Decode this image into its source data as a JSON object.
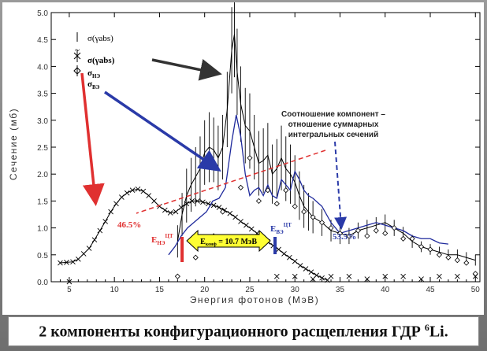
{
  "caption": {
    "main": "2 компоненты конфигурационного расщепления ГДР ",
    "superscript": "6",
    "element": "Li."
  },
  "chart_data": {
    "type": "line",
    "xlabel": "Энергия фотонов (МэВ)",
    "ylabel": "Сечение (мб)",
    "xlim": [
      3,
      50.5
    ],
    "ylim": [
      0,
      5.0
    ],
    "xticks": [
      5,
      10,
      15,
      20,
      25,
      30,
      35,
      40,
      45,
      50
    ],
    "yticks": [
      0.0,
      0.5,
      1.0,
      1.5,
      2.0,
      2.5,
      3.0,
      3.5,
      4.0,
      4.5,
      5.0
    ],
    "ytick_labels": [
      "0.0",
      "0.5",
      "1.0",
      "1.5",
      "2.0",
      "2.5",
      "3.0",
      "3.5",
      "4.0",
      "4.5",
      "5.0"
    ],
    "grid": false,
    "legend": {
      "placement": "top-left",
      "entries": [
        {
          "marker": "errorbar",
          "text": "σ(γabs)"
        },
        {
          "marker": "tilde",
          "text": "~"
        },
        {
          "marker": "x-bar",
          "text": "σ(γabs)"
        },
        {
          "marker": "diamond",
          "text": "σ",
          "sub": "НЭ"
        },
        {
          "marker": "none",
          "text": "σ",
          "sub": "ВЭ"
        }
      ]
    },
    "series": [
      {
        "name": "σ(γabs)",
        "style": "errorbar-line",
        "color": "#000000",
        "x": [
          17.0,
          17.5,
          18.0,
          18.5,
          19.0,
          19.5,
          20.0,
          20.5,
          21.0,
          21.5,
          22.0,
          22.5,
          23.0,
          23.3,
          23.6,
          24.0,
          24.5,
          25.0,
          25.5,
          26.0,
          26.5,
          27.0,
          27.5,
          28.0,
          28.5,
          29.0,
          29.5,
          30.0,
          30.5,
          31.0,
          31.5,
          32.0,
          33.0,
          34.0,
          35.0,
          36.0,
          37.0,
          38.0,
          39.0,
          40.0,
          41.0,
          42.0,
          43.0,
          44.0,
          45.0,
          46.0,
          47.0,
          48.0,
          49.0,
          50.0
        ],
        "y": [
          0.75,
          1.25,
          1.6,
          1.8,
          1.95,
          2.1,
          2.4,
          2.5,
          2.45,
          2.3,
          2.5,
          3.2,
          4.3,
          4.6,
          3.9,
          3.3,
          2.9,
          2.8,
          2.5,
          2.2,
          2.25,
          2.35,
          2.0,
          2.1,
          2.3,
          2.1,
          2.0,
          1.85,
          1.6,
          1.4,
          1.3,
          1.2,
          1.1,
          0.95,
          0.9,
          0.85,
          0.95,
          1.0,
          1.05,
          1.1,
          1.0,
          0.9,
          0.75,
          0.65,
          0.6,
          0.55,
          0.5,
          0.5,
          0.45,
          0.4
        ],
        "err": [
          0.3,
          0.4,
          0.5,
          0.5,
          0.55,
          0.6,
          0.6,
          0.65,
          0.6,
          0.6,
          0.6,
          0.7,
          0.8,
          0.8,
          0.8,
          0.7,
          0.7,
          0.7,
          0.6,
          0.6,
          0.6,
          0.6,
          0.55,
          0.55,
          0.6,
          0.6,
          0.55,
          0.5,
          0.45,
          0.4,
          0.35,
          0.3,
          0.25,
          0.2,
          0.2,
          0.15,
          0.15,
          0.15,
          0.15,
          0.15,
          0.15,
          0.12,
          0.12,
          0.1,
          0.1,
          0.1,
          0.1,
          0.1,
          0.1,
          0.1
        ]
      },
      {
        "name": "σНЭ",
        "style": "x-line",
        "color": "#000000",
        "x": [
          4.0,
          4.7,
          5.4,
          6.0,
          6.6,
          7.2,
          7.8,
          8.4,
          9.0,
          9.6,
          10.2,
          10.8,
          11.4,
          12.0,
          12.6,
          13.2,
          13.8,
          14.4,
          15.0,
          15.6,
          16.2,
          16.8,
          17.4,
          18.0,
          18.6,
          19.2,
          19.8,
          20.4,
          21.0,
          21.6,
          22.2,
          22.8,
          23.4,
          24.0,
          24.6,
          25.2,
          25.8,
          26.4,
          27.0,
          27.6,
          28.2,
          28.8,
          29.4,
          30.0,
          30.6,
          31.2,
          31.8,
          32.4,
          33.0,
          33.6
        ],
        "y": [
          0.35,
          0.36,
          0.37,
          0.42,
          0.52,
          0.62,
          0.78,
          0.95,
          1.12,
          1.3,
          1.45,
          1.57,
          1.65,
          1.7,
          1.72,
          1.68,
          1.6,
          1.5,
          1.4,
          1.33,
          1.28,
          1.3,
          1.38,
          1.45,
          1.5,
          1.5,
          1.48,
          1.45,
          1.42,
          1.38,
          1.33,
          1.27,
          1.2,
          1.12,
          1.05,
          0.98,
          0.9,
          0.82,
          0.74,
          0.67,
          0.6,
          0.52,
          0.45,
          0.38,
          0.3,
          0.24,
          0.18,
          0.12,
          0.07,
          0.03
        ]
      },
      {
        "name": "σВЭ",
        "style": "diamond-line",
        "color": "#1f2a9c",
        "x": [
          16.0,
          16.7,
          17.4,
          18.1,
          18.8,
          19.5,
          20.2,
          20.9,
          21.6,
          22.3,
          23.0,
          23.5,
          24.0,
          24.5,
          25.0,
          25.5,
          26.0,
          26.5,
          27.0,
          27.5,
          28.0,
          28.5,
          29.0,
          29.5,
          30.0,
          30.5,
          31.0,
          31.5,
          32.0,
          33.0,
          34.0,
          35.0,
          36.0,
          37.0,
          38.0,
          39.0,
          40.0,
          41.0,
          42.0,
          43.0,
          44.0,
          45.0,
          46.0,
          47.0
        ],
        "y": [
          0.5,
          0.65,
          0.85,
          1.0,
          1.1,
          1.2,
          1.3,
          1.5,
          1.55,
          1.75,
          2.6,
          3.1,
          2.7,
          2.0,
          1.6,
          1.7,
          1.75,
          1.6,
          1.8,
          1.6,
          1.55,
          1.9,
          1.8,
          1.7,
          2.05,
          1.9,
          1.7,
          1.6,
          1.55,
          1.4,
          1.1,
          0.9,
          0.95,
          1.0,
          1.05,
          1.1,
          1.05,
          1.0,
          0.95,
          0.85,
          0.8,
          0.8,
          0.72,
          0.7
        ]
      },
      {
        "name": "",
        "style": "scatter-x",
        "color": "#000000",
        "x": [
          5.0,
          28.0,
          30.0,
          32.0,
          34.0,
          36.0,
          38.0,
          40.0,
          42.0,
          44.0,
          46.0,
          48.0,
          50.0
        ],
        "y": [
          0.0,
          0.1,
          0.1,
          0.05,
          0.1,
          0.1,
          0.05,
          0.1,
          0.1,
          0.05,
          0.1,
          0.1,
          0.1
        ]
      },
      {
        "name": "",
        "style": "scatter-diamond",
        "color": "#000000",
        "x": [
          17.0,
          19.0,
          21.0,
          22.0,
          24.0,
          25.0,
          26.0,
          27.0,
          28.0,
          29.0,
          30.0,
          31.0,
          32.0,
          33.0,
          34.0,
          35.0,
          36.0,
          37.0,
          38.0,
          39.0,
          40.0,
          41.0,
          42.0,
          43.0,
          44.0,
          45.0,
          46.0,
          47.0,
          48.0,
          49.0,
          50.0
        ],
        "y": [
          0.1,
          0.45,
          0.85,
          1.3,
          1.75,
          2.3,
          1.5,
          1.7,
          1.45,
          1.7,
          1.4,
          1.3,
          1.2,
          1.1,
          1.0,
          0.9,
          0.85,
          0.95,
          0.85,
          0.95,
          0.9,
          1.0,
          0.8,
          0.8,
          0.65,
          0.6,
          0.5,
          0.45,
          0.4,
          0.35,
          0.15
        ]
      }
    ],
    "annotations": [
      {
        "id": "ratio-note",
        "lines": [
          "Соотношение компонент –",
          "отношение суммарных",
          "интегральных сечений"
        ]
      },
      {
        "id": "pct-left",
        "text": "46.5%",
        "color": "#e03030"
      },
      {
        "id": "pct-right",
        "text": "53.5%",
        "color": "#2a3aa8"
      },
      {
        "id": "e-ne",
        "text": "E",
        "sub": "НЭ",
        "sup": "ЦТ",
        "color": "#e03030",
        "x": 17.5
      },
      {
        "id": "e-ve",
        "text": "E",
        "sub": "ВЭ",
        "sup": "ЦТ",
        "color": "#2a3aa8",
        "x": 27.8
      },
      {
        "id": "e-split",
        "prefix": "E",
        "sub": "конф",
        "text": " = 10.7 МэВ",
        "color": "#ffff33",
        "x_from": 17.5,
        "x_to": 27.8
      }
    ],
    "colors": {
      "red": "#e03030",
      "blue": "#2a3aa8",
      "gray": "#333333",
      "yellow": "#ffff33"
    }
  }
}
